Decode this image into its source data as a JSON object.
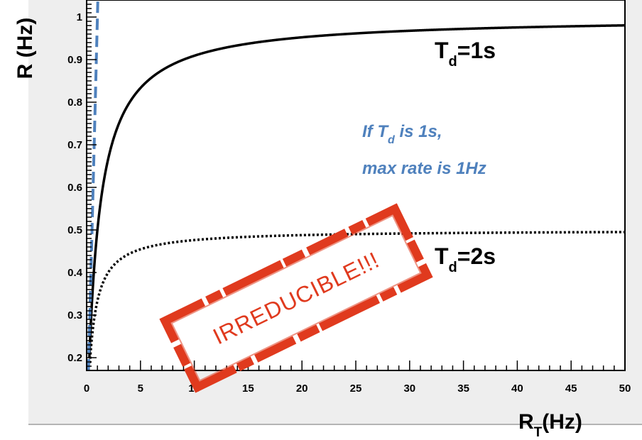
{
  "chart_data": {
    "type": "line",
    "xlabel": "R",
    "xlabel_sub": "T",
    "xlabel_unit": "(Hz)",
    "ylabel": "R (Hz)",
    "xlim": [
      0,
      50
    ],
    "ylim": [
      0.17,
      1.04
    ],
    "x_ticks": [
      0,
      5,
      10,
      15,
      20,
      25,
      30,
      35,
      40,
      45,
      50
    ],
    "y_ticks": [
      0.2,
      0.3,
      0.4,
      0.5,
      0.6,
      0.7,
      0.8,
      0.9,
      1
    ],
    "grid": false,
    "series": [
      {
        "label_main": "T",
        "label_sub": "d",
        "label_value": "=1s",
        "style": "solid",
        "color": "#000000",
        "model": "R = RT / (1 + RT * Td)",
        "dead_time_s": 1
      },
      {
        "label_main": "T",
        "label_sub": "d",
        "label_value": "=2s",
        "style": "dotted",
        "color": "#000000",
        "model": "R = RT / (1 + RT * Td)",
        "dead_time_s": 2
      },
      {
        "style": "dashed",
        "color": "#4f81bd",
        "model": "R = RT",
        "points": [
          [
            0.17,
            0.17
          ],
          [
            1.04,
            1.04
          ]
        ]
      }
    ],
    "annotations": {
      "note_line1_prefix": "If T",
      "note_line1_sub": "d",
      "note_line1_suffix": " is 1s,",
      "note_line2": "max rate is 1Hz",
      "note_color": "#4f81bd",
      "stamp_text": "IRREDUCIBLE!!!",
      "stamp_color": "#e03a1e"
    }
  }
}
